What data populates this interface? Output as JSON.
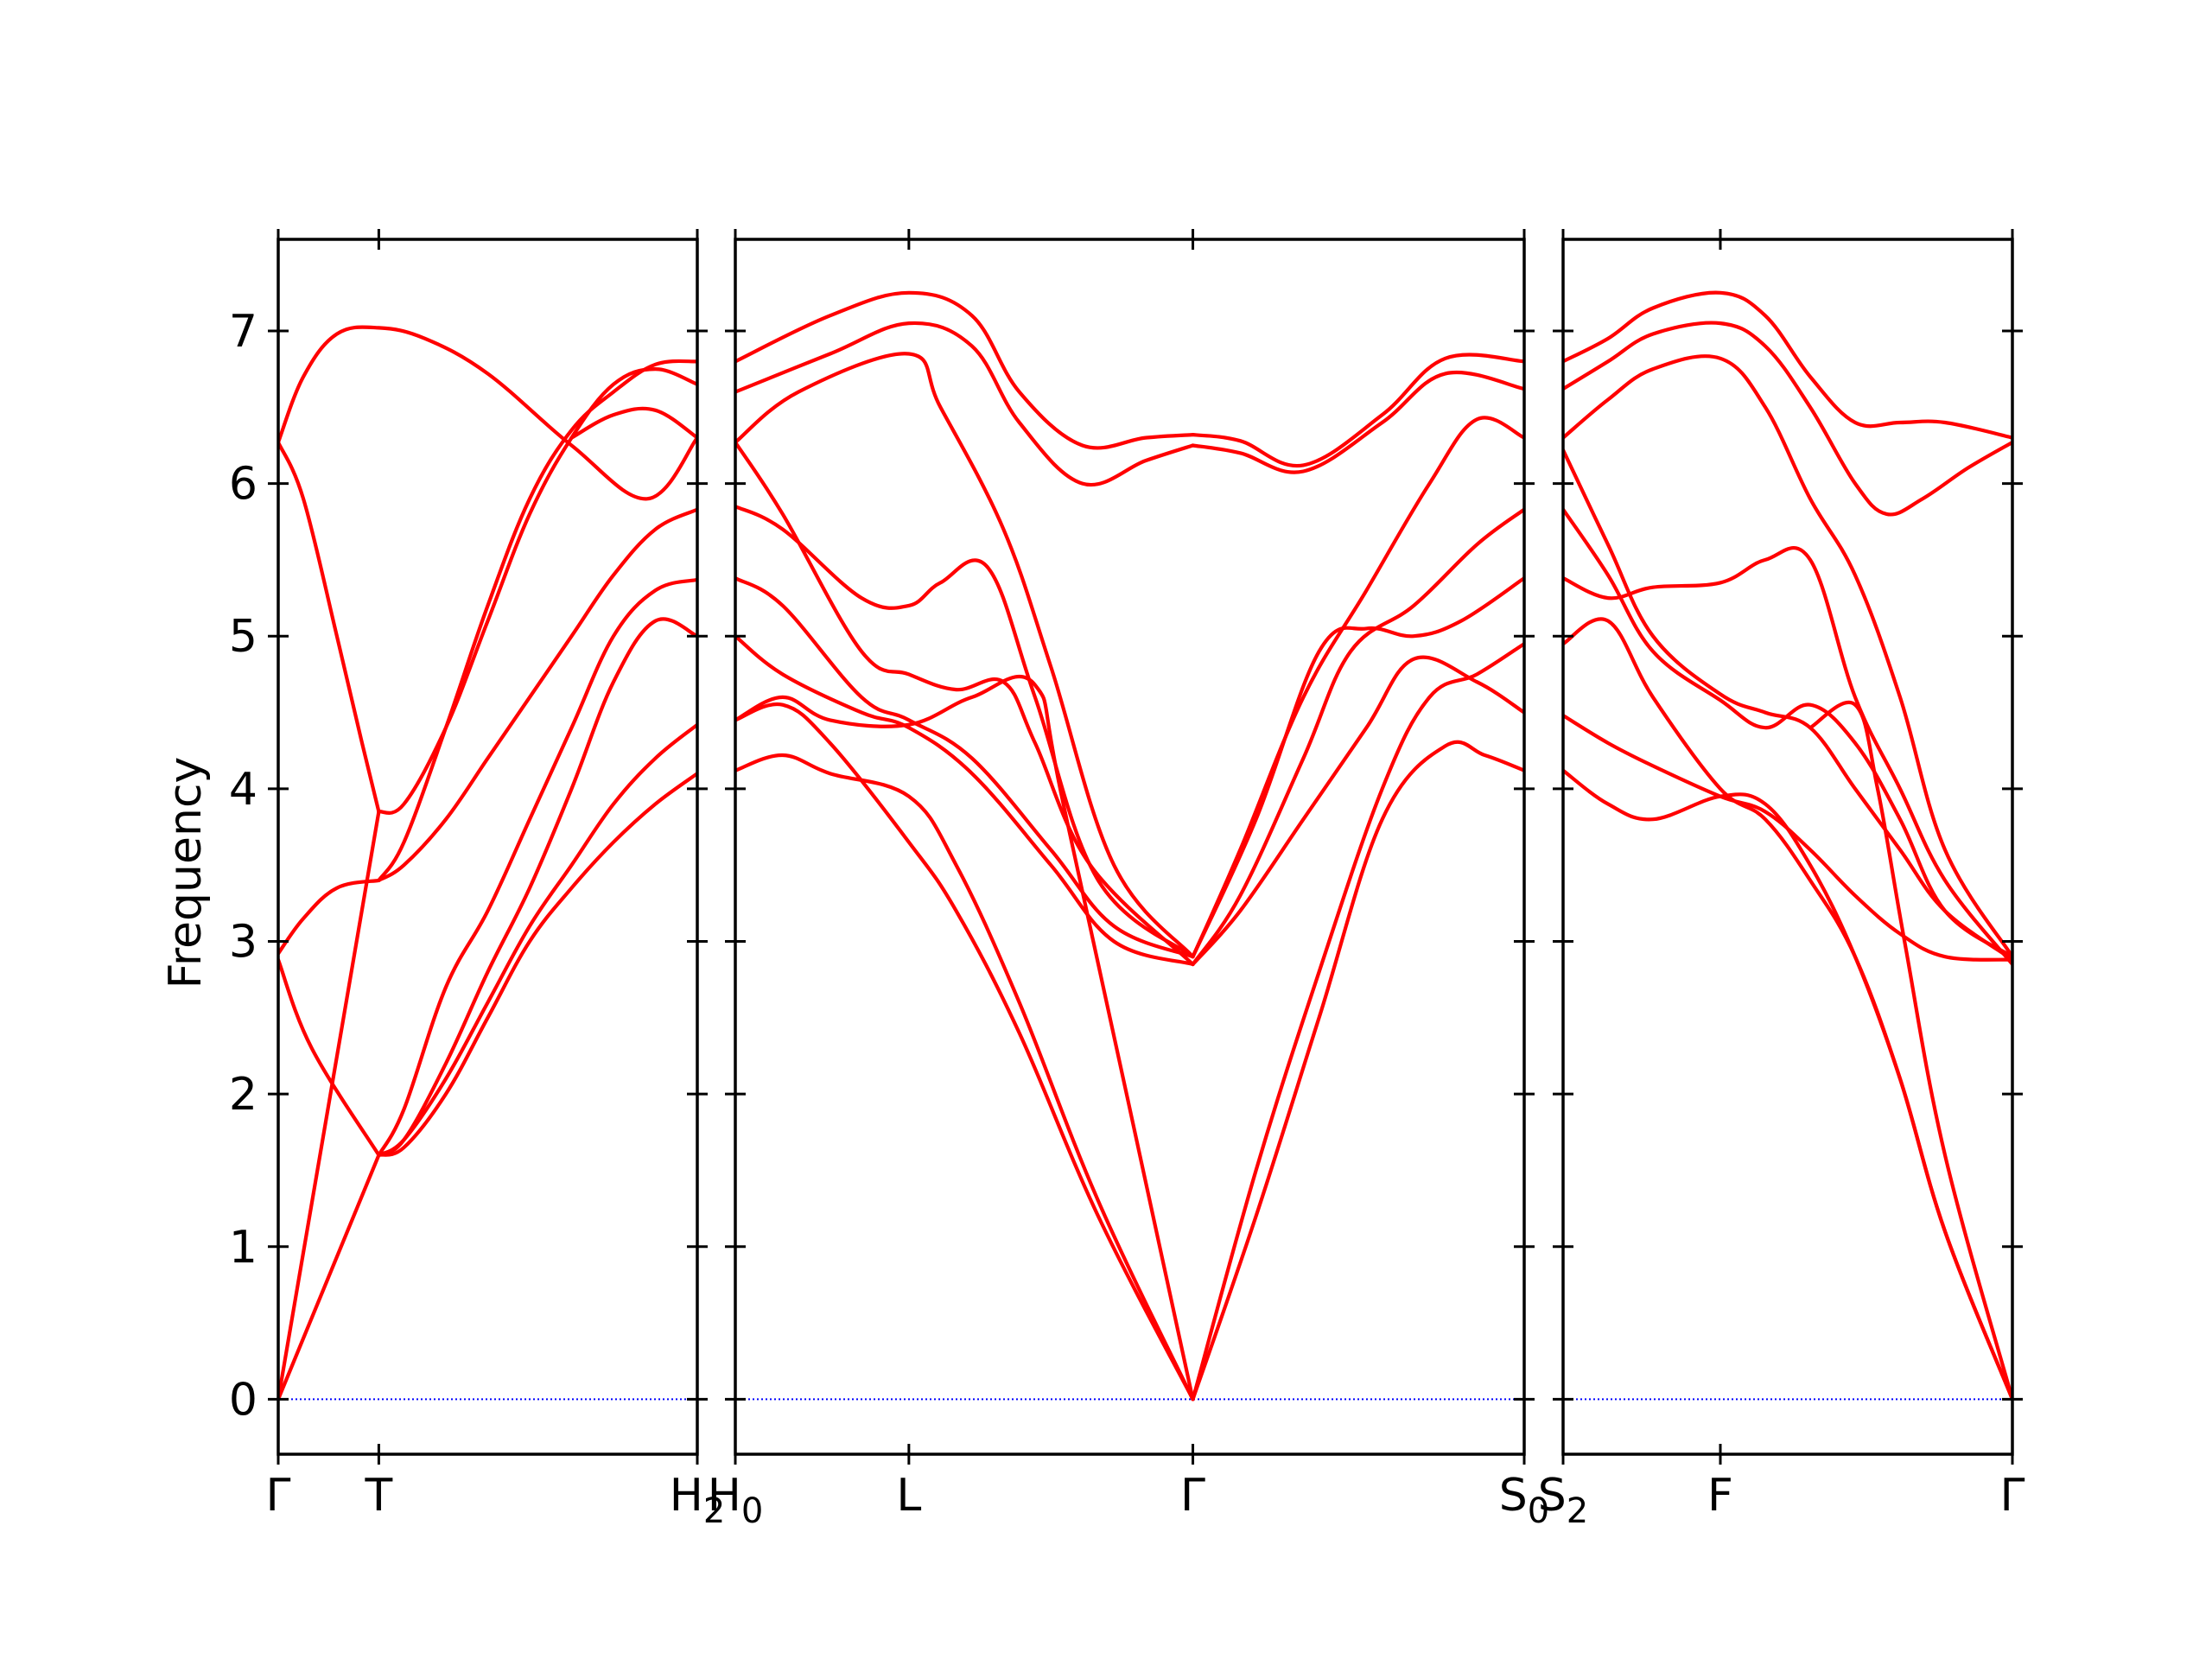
{
  "chart_data": {
    "type": "line",
    "ylabel": "Frequency",
    "ylim": [
      -0.36,
      7.6
    ],
    "yticks": [
      0,
      1,
      2,
      3,
      4,
      5,
      6,
      7
    ],
    "grid": false,
    "legend": "none",
    "colors": {
      "bands": "#ff0000",
      "zero_line": "#0000ff",
      "axes": "#000000"
    },
    "panels": [
      {
        "name": "panel-1",
        "xticks": [
          {
            "x": 0.0,
            "label": "Γ"
          },
          {
            "x": 0.24,
            "label": "T"
          },
          {
            "x": 1.0,
            "label": "H",
            "sub": "2"
          }
        ],
        "bands": [
          {
            "x": [
              0,
              0.24
            ],
            "y": [
              0,
              1.6
            ]
          },
          {
            "x": [
              0,
              0.24
            ],
            "y": [
              0,
              3.85
            ]
          },
          {
            "x": [
              0,
              0.08,
              0.24
            ],
            "y": [
              2.88,
              2.3,
              1.6
            ]
          },
          {
            "x": [
              0,
              0.06,
              0.14,
              0.24
            ],
            "y": [
              2.92,
              3.15,
              3.35,
              3.4
            ]
          },
          {
            "x": [
              0,
              0.06,
              0.14,
              0.2,
              0.24
            ],
            "y": [
              6.27,
              5.9,
              5.0,
              4.3,
              3.85
            ]
          },
          {
            "x": [
              0,
              0.06,
              0.14,
              0.24,
              0.35,
              0.5,
              0.7,
              0.88,
              1.0
            ],
            "y": [
              6.27,
              6.7,
              6.98,
              7.02,
              6.95,
              6.72,
              6.25,
              5.9,
              6.3
            ]
          },
          {
            "x": [
              0.24,
              0.3,
              0.4,
              0.5,
              0.6,
              0.7,
              0.8,
              0.9,
              1.0
            ],
            "y": [
              1.6,
              1.7,
              2.2,
              2.8,
              3.35,
              4.0,
              4.7,
              5.1,
              5.0
            ]
          },
          {
            "x": [
              0.24,
              0.3,
              0.4,
              0.5,
              0.6,
              0.7,
              0.8,
              0.9,
              1.0
            ],
            "y": [
              1.6,
              1.65,
              2.0,
              2.5,
              3.0,
              3.35,
              3.65,
              3.9,
              4.1
            ]
          },
          {
            "x": [
              0.24,
              0.3,
              0.4,
              0.5,
              0.6,
              0.7,
              0.8,
              0.9,
              1.0
            ],
            "y": [
              1.6,
              1.9,
              2.7,
              3.2,
              3.8,
              4.4,
              5.0,
              5.3,
              5.37
            ]
          },
          {
            "x": [
              0.24,
              0.3,
              0.4,
              0.5,
              0.6,
              0.7,
              0.8,
              0.9,
              1.0
            ],
            "y": [
              1.6,
              1.7,
              2.1,
              2.6,
              3.1,
              3.5,
              3.9,
              4.2,
              4.42
            ]
          },
          {
            "x": [
              0.24,
              0.3,
              0.4,
              0.5,
              0.6,
              0.7,
              0.8,
              0.9,
              1.0
            ],
            "y": [
              3.4,
              3.5,
              3.8,
              4.2,
              4.6,
              5.0,
              5.4,
              5.7,
              5.83
            ]
          },
          {
            "x": [
              0.24,
              0.3,
              0.4,
              0.5,
              0.6,
              0.7,
              0.8,
              0.9,
              1.0
            ],
            "y": [
              3.85,
              3.9,
              4.4,
              5.1,
              5.8,
              6.3,
              6.65,
              6.75,
              6.65
            ]
          },
          {
            "x": [
              0.24,
              0.3,
              0.4,
              0.5,
              0.6,
              0.7,
              0.8,
              0.9,
              1.0
            ],
            "y": [
              3.4,
              3.65,
              4.4,
              5.2,
              5.9,
              6.35,
              6.6,
              6.78,
              6.8
            ]
          },
          {
            "x": [
              0.7,
              0.8,
              0.9,
              1.0
            ],
            "y": [
              6.3,
              6.45,
              6.48,
              6.3
            ]
          }
        ]
      },
      {
        "name": "panel-2",
        "xticks": [
          {
            "x": 0.0,
            "label": "H",
            "sub": "0"
          },
          {
            "x": 0.22,
            "label": "L"
          },
          {
            "x": 0.58,
            "label": "Γ"
          },
          {
            "x": 1.0,
            "label": "S",
            "sub": "0"
          }
        ],
        "bands": [
          {
            "x": [
              0,
              0.12,
              0.22,
              0.3,
              0.36,
              0.44,
              0.52,
              0.58
            ],
            "y": [
              6.8,
              7.1,
              7.25,
              7.1,
              6.6,
              6.25,
              6.3,
              6.32
            ]
          },
          {
            "x": [
              0,
              0.12,
              0.22,
              0.3,
              0.36,
              0.44,
              0.52,
              0.58
            ],
            "y": [
              6.6,
              6.85,
              7.05,
              6.9,
              6.4,
              6.0,
              6.15,
              6.25
            ]
          },
          {
            "x": [
              0,
              0.08,
              0.22,
              0.26,
              0.34,
              0.4,
              0.48,
              0.58
            ],
            "y": [
              6.27,
              6.6,
              6.85,
              6.5,
              5.7,
              4.8,
              3.5,
              2.9
            ]
          },
          {
            "x": [
              0,
              0.06,
              0.16,
              0.22,
              0.26,
              0.32,
              0.38,
              0.46,
              0.58
            ],
            "y": [
              5.85,
              5.7,
              5.25,
              5.2,
              5.35,
              5.45,
              4.6,
              3.4,
              2.9
            ]
          },
          {
            "x": [
              0,
              0.06,
              0.16,
              0.22,
              0.28,
              0.34,
              0.38,
              0.45,
              0.58
            ],
            "y": [
              6.27,
              5.8,
              4.9,
              4.75,
              4.65,
              4.7,
              4.3,
              3.5,
              2.85
            ]
          },
          {
            "x": [
              0,
              0.06,
              0.16,
              0.22,
              0.3,
              0.4,
              0.48,
              0.58
            ],
            "y": [
              5.38,
              5.2,
              4.6,
              4.45,
              4.2,
              3.6,
              3.1,
              2.9
            ]
          },
          {
            "x": [
              0,
              0.06,
              0.16,
              0.22,
              0.3,
              0.4,
              0.48,
              0.58
            ],
            "y": [
              5.0,
              4.75,
              4.5,
              4.4,
              4.1,
              3.5,
              3.0,
              2.85
            ]
          },
          {
            "x": [
              0,
              0.06,
              0.12,
              0.22,
              0.3,
              0.38,
              0.42,
              0.58
            ],
            "y": [
              4.45,
              4.6,
              4.45,
              4.42,
              4.6,
              4.68,
              3.8,
              0
            ]
          },
          {
            "x": [
              0,
              0.06,
              0.12,
              0.22,
              0.28,
              0.36,
              0.46,
              0.58
            ],
            "y": [
              4.12,
              4.22,
              4.1,
              3.95,
              3.5,
              2.6,
              1.3,
              0
            ]
          },
          {
            "x": [
              0,
              0.06,
              0.12,
              0.22,
              0.28,
              0.36,
              0.46,
              0.58
            ],
            "y": [
              4.45,
              4.55,
              4.3,
              3.65,
              3.2,
              2.4,
              1.2,
              0
            ]
          },
          {
            "x": [
              0.58,
              0.64,
              0.72,
              0.82,
              0.9,
              1.0
            ],
            "y": [
              6.32,
              6.28,
              6.12,
              6.45,
              6.82,
              6.8
            ]
          },
          {
            "x": [
              0.58,
              0.64,
              0.72,
              0.82,
              0.9,
              1.0
            ],
            "y": [
              6.25,
              6.2,
              6.08,
              6.4,
              6.72,
              6.62
            ]
          },
          {
            "x": [
              0.58,
              0.64,
              0.72,
              0.78,
              0.86,
              0.94,
              1.0
            ],
            "y": [
              2.85,
              3.3,
              4.2,
              4.9,
              5.2,
              5.6,
              5.83
            ]
          },
          {
            "x": [
              0.58,
              0.64,
              0.72,
              0.8,
              0.88,
              0.94,
              1.0
            ],
            "y": [
              2.9,
              3.6,
              4.6,
              5.3,
              6.0,
              6.42,
              6.3
            ]
          },
          {
            "x": [
              0.58,
              0.66,
              0.74,
              0.8,
              0.86,
              0.92,
              1.0
            ],
            "y": [
              2.9,
              3.8,
              4.9,
              5.05,
              5.0,
              5.1,
              5.38
            ]
          },
          {
            "x": [
              0.58,
              0.64,
              0.72,
              0.8,
              0.86,
              0.94,
              1.0
            ],
            "y": [
              2.85,
              3.2,
              3.8,
              4.4,
              4.85,
              4.7,
              4.5
            ]
          },
          {
            "x": [
              0.58,
              0.66,
              0.74,
              0.82,
              0.88,
              0.94,
              1.0
            ],
            "y": [
              0,
              1.5,
              2.8,
              4.0,
              4.6,
              4.75,
              4.95
            ]
          },
          {
            "x": [
              0.58,
              0.66,
              0.74,
              0.82,
              0.9,
              0.95,
              1.0
            ],
            "y": [
              0,
              1.2,
              2.5,
              3.8,
              4.28,
              4.22,
              4.12
            ]
          }
        ]
      },
      {
        "name": "panel-3",
        "xticks": [
          {
            "x": 0.0,
            "label": "S",
            "sub": "2"
          },
          {
            "x": 0.35,
            "label": "F"
          },
          {
            "x": 1.0,
            "label": "Γ"
          }
        ],
        "bands": [
          {
            "x": [
              0,
              0.1,
              0.2,
              0.35,
              0.45,
              0.55,
              0.65,
              0.75,
              0.85,
              1.0
            ],
            "y": [
              6.8,
              6.95,
              7.15,
              7.25,
              7.1,
              6.7,
              6.4,
              6.4,
              6.4,
              6.3
            ]
          },
          {
            "x": [
              0,
              0.1,
              0.2,
              0.35,
              0.45,
              0.55,
              0.65,
              0.72,
              0.8,
              0.9,
              1.0
            ],
            "y": [
              6.62,
              6.8,
              6.98,
              7.05,
              6.9,
              6.5,
              6.0,
              5.8,
              5.9,
              6.1,
              6.27
            ]
          },
          {
            "x": [
              0,
              0.1,
              0.2,
              0.35,
              0.45,
              0.55,
              0.65,
              0.75,
              0.85,
              1.0
            ],
            "y": [
              6.3,
              6.55,
              6.75,
              6.82,
              6.5,
              5.9,
              5.4,
              4.6,
              3.6,
              2.9
            ]
          },
          {
            "x": [
              0,
              0.1,
              0.2,
              0.35,
              0.45,
              0.55,
              0.65,
              0.75,
              0.85,
              1.0
            ],
            "y": [
              6.22,
              5.6,
              5.0,
              4.62,
              4.5,
              4.4,
              4.0,
              3.6,
              3.2,
              2.88
            ]
          },
          {
            "x": [
              0,
              0.1,
              0.2,
              0.35,
              0.45,
              0.55,
              0.65,
              0.75,
              0.85,
              1.0
            ],
            "y": [
              5.83,
              5.4,
              4.9,
              4.58,
              4.4,
              4.55,
              4.3,
              3.8,
              3.2,
              2.9
            ]
          },
          {
            "x": [
              0,
              0.1,
              0.2,
              0.35,
              0.45,
              0.55,
              0.65,
              0.75,
              0.85,
              1.0
            ],
            "y": [
              5.38,
              5.25,
              5.32,
              5.35,
              5.5,
              5.5,
              4.6,
              4.0,
              3.4,
              2.85
            ]
          },
          {
            "x": [
              0,
              0.1,
              0.2,
              0.35,
              0.45,
              0.55,
              0.65,
              0.75,
              0.85,
              1.0
            ],
            "y": [
              4.95,
              5.1,
              4.6,
              4.0,
              3.8,
              3.4,
              2.9,
              2.1,
              1.1,
              0
            ]
          },
          {
            "x": [
              0,
              0.1,
              0.2,
              0.35,
              0.45,
              0.55,
              0.65,
              0.75,
              0.85,
              1.0
            ],
            "y": [
              4.12,
              3.9,
              3.8,
              3.95,
              3.9,
              3.5,
              2.9,
              2.1,
              1.1,
              0
            ]
          },
          {
            "x": [
              0,
              0.1,
              0.2,
              0.35,
              0.45,
              0.55,
              0.65,
              0.75,
              0.85,
              1.0
            ],
            "y": [
              4.48,
              4.3,
              4.15,
              3.95,
              3.85,
              3.6,
              3.3,
              3.05,
              2.9,
              2.88
            ]
          },
          {
            "x": [
              0.55,
              0.65,
              0.7,
              0.76,
              0.85,
              1.0
            ],
            "y": [
              4.4,
              4.55,
              4.0,
              3.0,
              1.6,
              0
            ]
          }
        ]
      }
    ]
  }
}
